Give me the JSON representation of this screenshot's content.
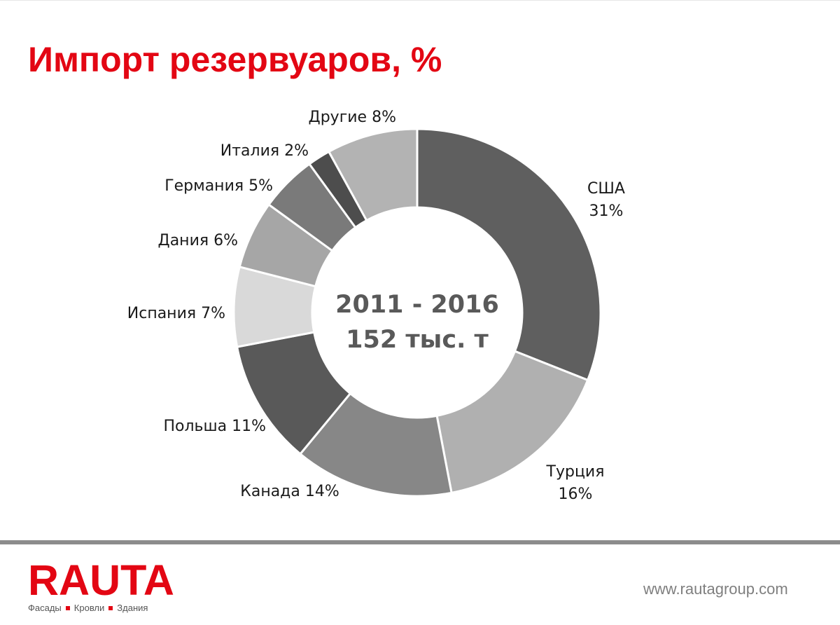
{
  "title": "Импорт резервуаров, %",
  "chart_data": {
    "type": "pie",
    "slices": [
      {
        "name": "США",
        "value": 31,
        "label_lines": [
          "США",
          "31%"
        ],
        "color": "#5f5f5f"
      },
      {
        "name": "Турция",
        "value": 16,
        "label_lines": [
          "Турция",
          "16%"
        ],
        "color": "#b0b0b0"
      },
      {
        "name": "Канада",
        "value": 14,
        "label_lines": [
          "Канада 14%"
        ],
        "color": "#878787"
      },
      {
        "name": "Польша",
        "value": 11,
        "label_lines": [
          "Польша 11%"
        ],
        "color": "#595959"
      },
      {
        "name": "Испания",
        "value": 7,
        "label_lines": [
          "Испания 7%"
        ],
        "color": "#d9d9d9"
      },
      {
        "name": "Дания",
        "value": 6,
        "label_lines": [
          "Дания 6%"
        ],
        "color": "#a6a6a6"
      },
      {
        "name": "Германия",
        "value": 5,
        "label_lines": [
          "Германия 5%"
        ],
        "color": "#7a7a7a"
      },
      {
        "name": "Италия",
        "value": 2,
        "label_lines": [
          "Италия 2%"
        ],
        "color": "#4d4d4d"
      },
      {
        "name": "Другие",
        "value": 8,
        "label_lines": [
          "Другие 8%"
        ],
        "color": "#b3b3b3"
      }
    ],
    "center_text": [
      "2011 - 2016",
      "152 тыс. т"
    ]
  },
  "footer": {
    "logo": "RAUTA",
    "tagline": [
      "Фасады",
      "Кровли",
      "Здания"
    ],
    "website": "www.rautagroup.com"
  }
}
